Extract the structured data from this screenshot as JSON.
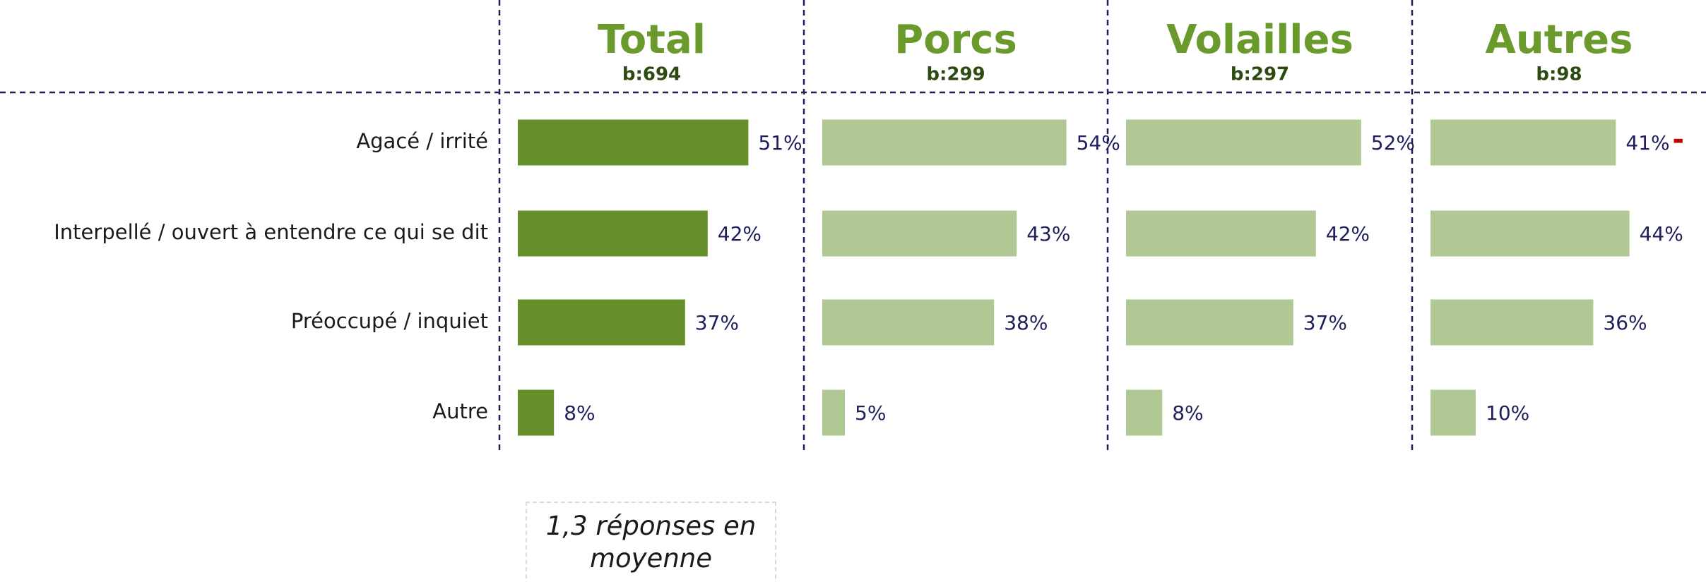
{
  "chart_data": {
    "type": "bar",
    "orientation": "horizontal",
    "categories": [
      "Agacé / irrité",
      "Interpellé / ouvert à entendre ce qui se dit",
      "Préoccupé / inquiet",
      "Autre"
    ],
    "xlim": [
      0,
      60
    ],
    "series": [
      {
        "name": "Total",
        "base": "b:694",
        "color": "#648f2a",
        "values": [
          51,
          42,
          37,
          8
        ],
        "value_labels": [
          "51%",
          "42%",
          "37%",
          "8%"
        ]
      },
      {
        "name": "Porcs",
        "base": "b:299",
        "color": "#b0c893",
        "values": [
          54,
          43,
          38,
          5
        ],
        "value_labels": [
          "54%",
          "43%",
          "38%",
          "5%"
        ]
      },
      {
        "name": "Volailles",
        "base": "b:297",
        "color": "#b0c893",
        "values": [
          52,
          42,
          37,
          8
        ],
        "value_labels": [
          "52%",
          "42%",
          "37%",
          "8%"
        ]
      },
      {
        "name": "Autres",
        "base": "b:98",
        "color": "#b0c893",
        "values": [
          41,
          44,
          36,
          10
        ],
        "value_labels": [
          "41%",
          "44%",
          "36%",
          "10%"
        ],
        "flags": [
          "-",
          null,
          null,
          null
        ]
      }
    ],
    "note": "1,3 réponses en moyenne"
  }
}
